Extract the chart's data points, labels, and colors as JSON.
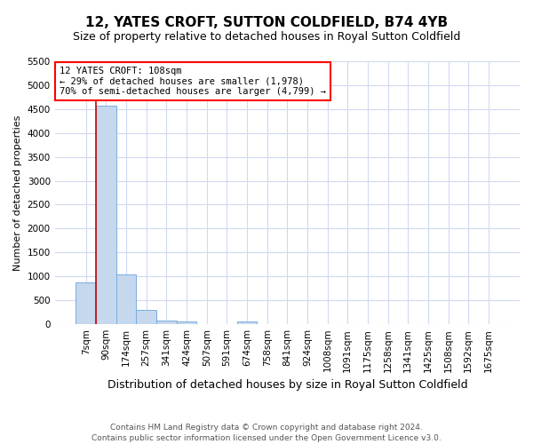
{
  "title": "12, YATES CROFT, SUTTON COLDFIELD, B74 4YB",
  "subtitle": "Size of property relative to detached houses in Royal Sutton Coldfield",
  "xlabel": "Distribution of detached houses by size in Royal Sutton Coldfield",
  "ylabel": "Number of detached properties",
  "footnote1": "Contains HM Land Registry data © Crown copyright and database right 2024.",
  "footnote2": "Contains public sector information licensed under the Open Government Licence v3.0.",
  "categories": [
    "7sqm",
    "90sqm",
    "174sqm",
    "257sqm",
    "341sqm",
    "424sqm",
    "507sqm",
    "591sqm",
    "674sqm",
    "758sqm",
    "841sqm",
    "924sqm",
    "1008sqm",
    "1091sqm",
    "1175sqm",
    "1258sqm",
    "1341sqm",
    "1425sqm",
    "1508sqm",
    "1592sqm",
    "1675sqm"
  ],
  "values": [
    870,
    4580,
    1050,
    290,
    75,
    50,
    0,
    0,
    50,
    0,
    0,
    0,
    0,
    0,
    0,
    0,
    0,
    0,
    0,
    0,
    0
  ],
  "bar_color": "#c5d8ed",
  "bar_edge_color": "#7aade0",
  "ylim": [
    0,
    5500
  ],
  "yticks": [
    0,
    500,
    1000,
    1500,
    2000,
    2500,
    3000,
    3500,
    4000,
    4500,
    5000,
    5500
  ],
  "property_line_color": "#cc0000",
  "property_line_x": 0.5,
  "annotation_text": "12 YATES CROFT: 108sqm\n← 29% of detached houses are smaller (1,978)\n70% of semi-detached houses are larger (4,799) →",
  "grid_color": "#d0daf0",
  "background_color": "#ffffff",
  "title_fontsize": 11,
  "subtitle_fontsize": 9,
  "ylabel_fontsize": 8,
  "xlabel_fontsize": 9,
  "tick_fontsize": 7.5,
  "annot_fontsize": 7.5,
  "footnote_fontsize": 6.5
}
